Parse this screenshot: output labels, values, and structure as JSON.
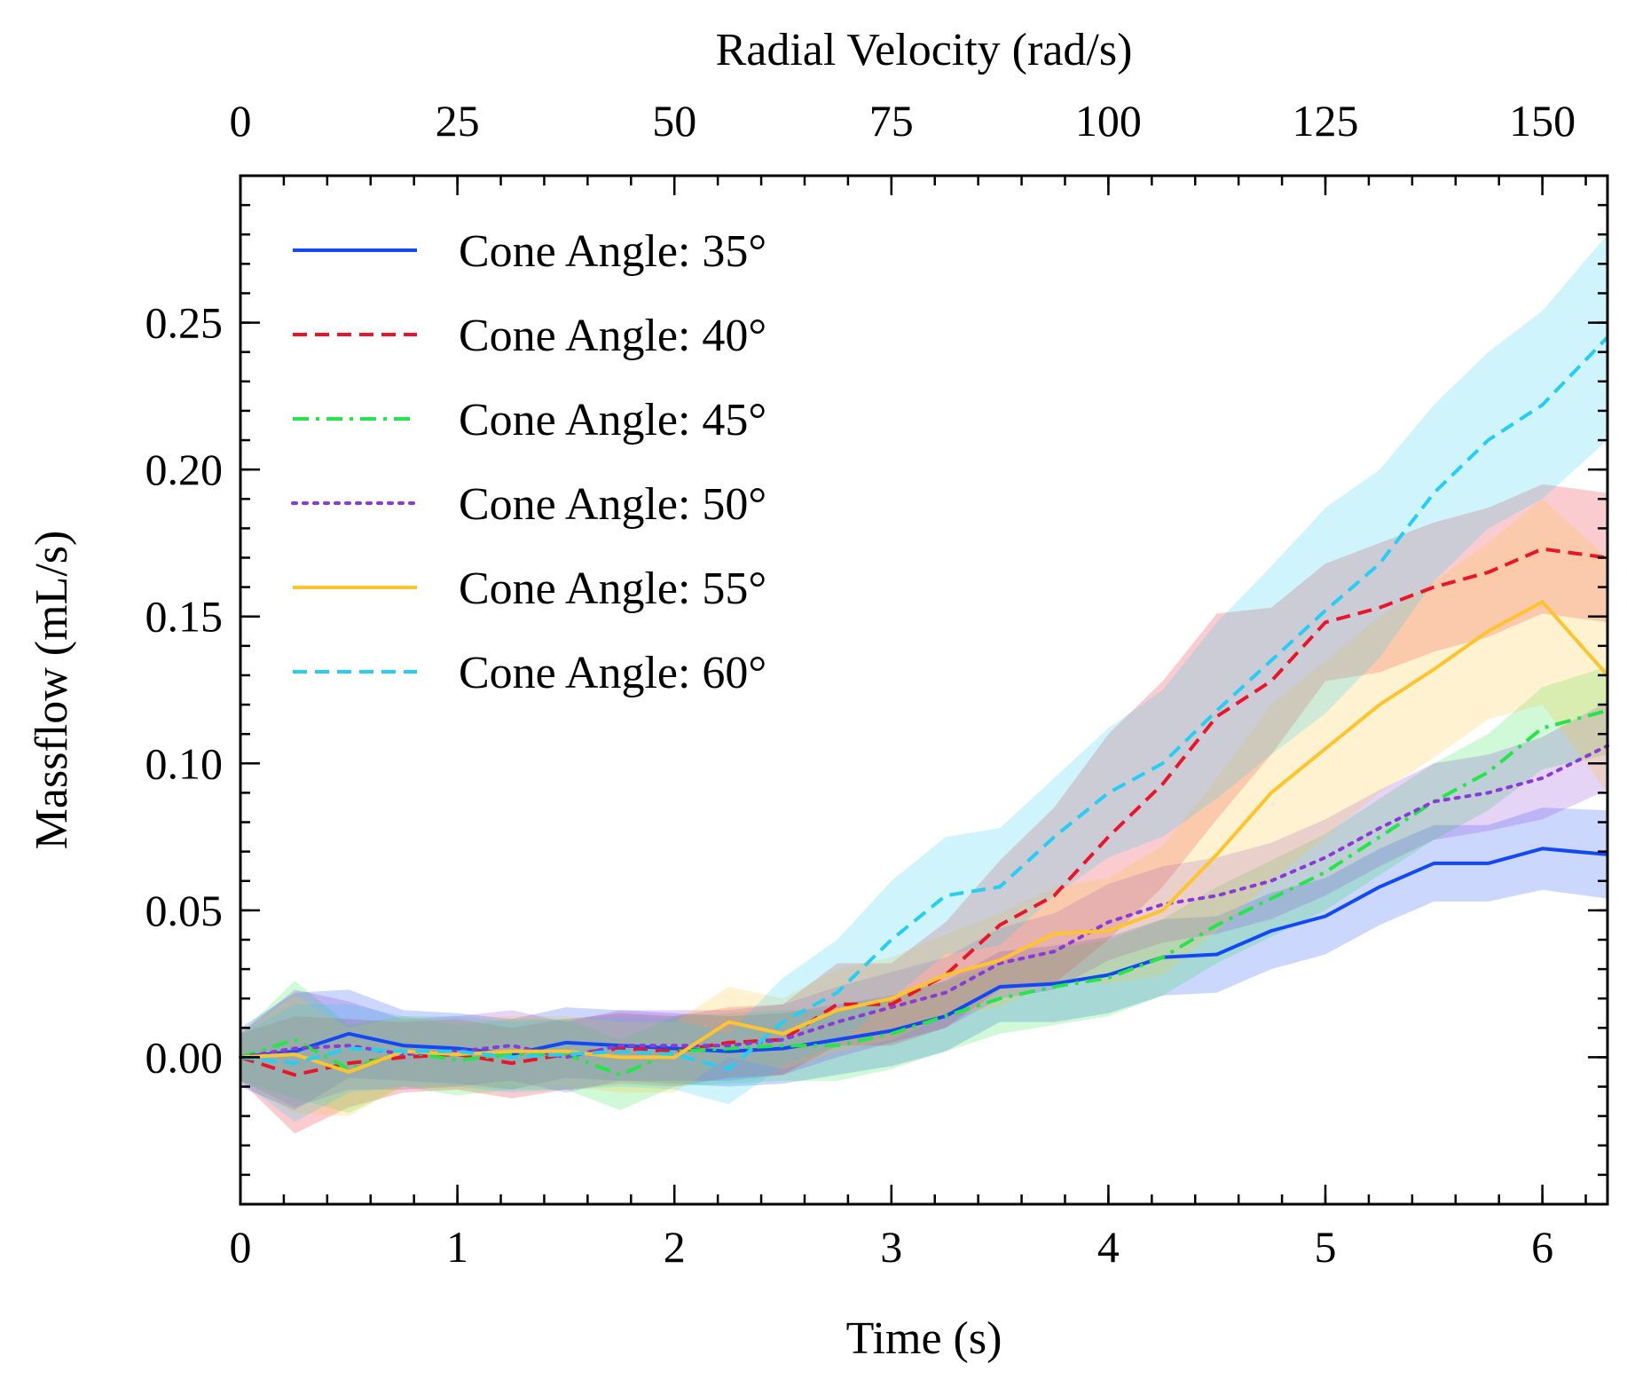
{
  "chart_data": {
    "type": "line",
    "xlabel": "Time (s)",
    "ylabel": "Massflow (mL/s)",
    "x2label": "Radial Velocity (rad/s)",
    "xlim": [
      0,
      6.3
    ],
    "ylim": [
      -0.05,
      0.3
    ],
    "x2lim": [
      0,
      157.5
    ],
    "xticks": [
      "0",
      "1",
      "2",
      "3",
      "4",
      "5",
      "6"
    ],
    "yticks": [
      "0.00",
      "0.05",
      "0.10",
      "0.15",
      "0.20",
      "0.25"
    ],
    "x2ticks": [
      "0",
      "25",
      "50",
      "75",
      "100",
      "125",
      "150"
    ],
    "grid": false,
    "legend_position": "top-left",
    "x": [
      0,
      0.25,
      0.5,
      0.75,
      1.0,
      1.25,
      1.5,
      1.75,
      2.0,
      2.25,
      2.5,
      2.75,
      3.0,
      3.25,
      3.5,
      3.75,
      4.0,
      4.25,
      4.5,
      4.75,
      5.0,
      5.25,
      5.5,
      5.75,
      6.0,
      6.3
    ],
    "series": [
      {
        "name": "Cone Angle: 35°",
        "color": "#1248f5",
        "style": "solid",
        "values": [
          0.0,
          0.002,
          0.008,
          0.004,
          0.003,
          0.001,
          0.005,
          0.004,
          0.003,
          0.002,
          0.003,
          0.006,
          0.009,
          0.014,
          0.024,
          0.025,
          0.028,
          0.034,
          0.035,
          0.043,
          0.048,
          0.058,
          0.066,
          0.066,
          0.071,
          0.069
        ],
        "band": [
          0.01,
          0.02,
          0.015,
          0.012,
          0.012,
          0.012,
          0.012,
          0.012,
          0.012,
          0.012,
          0.012,
          0.012,
          0.012,
          0.012,
          0.012,
          0.013,
          0.013,
          0.013,
          0.013,
          0.013,
          0.013,
          0.013,
          0.013,
          0.013,
          0.014,
          0.015
        ]
      },
      {
        "name": "Cone Angle: 40°",
        "color": "#e8152b",
        "style": "dashed",
        "values": [
          0.0,
          -0.006,
          -0.002,
          0.0,
          0.001,
          -0.002,
          0.001,
          0.003,
          0.002,
          0.005,
          0.006,
          0.018,
          0.018,
          0.028,
          0.045,
          0.055,
          0.075,
          0.093,
          0.116,
          0.128,
          0.148,
          0.153,
          0.16,
          0.165,
          0.173,
          0.17
        ],
        "band": [
          0.008,
          0.02,
          0.015,
          0.012,
          0.012,
          0.012,
          0.012,
          0.012,
          0.012,
          0.012,
          0.012,
          0.014,
          0.014,
          0.018,
          0.022,
          0.03,
          0.035,
          0.035,
          0.035,
          0.025,
          0.02,
          0.022,
          0.022,
          0.022,
          0.022,
          0.022
        ]
      },
      {
        "name": "Cone Angle: 45°",
        "color": "#26e54a",
        "style": "dashdot",
        "values": [
          0.0,
          0.006,
          -0.004,
          0.002,
          -0.001,
          0.001,
          0.001,
          -0.006,
          0.002,
          0.003,
          0.004,
          0.004,
          0.008,
          0.014,
          0.02,
          0.024,
          0.027,
          0.034,
          0.045,
          0.054,
          0.063,
          0.075,
          0.087,
          0.097,
          0.112,
          0.118
        ],
        "band": [
          0.008,
          0.02,
          0.015,
          0.012,
          0.012,
          0.012,
          0.012,
          0.012,
          0.012,
          0.012,
          0.012,
          0.012,
          0.012,
          0.012,
          0.012,
          0.013,
          0.013,
          0.013,
          0.013,
          0.013,
          0.013,
          0.013,
          0.013,
          0.013,
          0.014,
          0.015
        ]
      },
      {
        "name": "Cone Angle: 50°",
        "color": "#8a3ad8",
        "style": "dotted",
        "values": [
          0.0,
          0.003,
          0.004,
          0.001,
          0.002,
          0.004,
          0.0,
          0.004,
          0.004,
          0.004,
          0.006,
          0.012,
          0.017,
          0.022,
          0.032,
          0.036,
          0.046,
          0.052,
          0.055,
          0.06,
          0.068,
          0.078,
          0.087,
          0.09,
          0.095,
          0.106
        ],
        "band": [
          0.008,
          0.02,
          0.015,
          0.012,
          0.012,
          0.012,
          0.012,
          0.012,
          0.012,
          0.012,
          0.012,
          0.012,
          0.012,
          0.012,
          0.012,
          0.013,
          0.013,
          0.013,
          0.013,
          0.013,
          0.013,
          0.013,
          0.013,
          0.013,
          0.014,
          0.015
        ]
      },
      {
        "name": "Cone Angle: 55°",
        "color": "#ffc32e",
        "style": "solid",
        "values": [
          0.0,
          0.001,
          -0.005,
          0.002,
          0.001,
          0.002,
          0.002,
          0.0,
          0.0,
          0.012,
          0.008,
          0.016,
          0.02,
          0.028,
          0.033,
          0.042,
          0.043,
          0.05,
          0.069,
          0.09,
          0.105,
          0.12,
          0.132,
          0.145,
          0.155,
          0.13
        ],
        "band": [
          0.008,
          0.02,
          0.015,
          0.012,
          0.012,
          0.012,
          0.012,
          0.012,
          0.012,
          0.012,
          0.012,
          0.014,
          0.014,
          0.014,
          0.016,
          0.016,
          0.018,
          0.022,
          0.026,
          0.03,
          0.03,
          0.03,
          0.03,
          0.03,
          0.035,
          0.04
        ]
      },
      {
        "name": "Cone Angle: 60°",
        "color": "#27cdf2",
        "style": "dashed",
        "values": [
          0.0,
          -0.002,
          0.003,
          0.002,
          0.002,
          0.0,
          0.001,
          0.002,
          0.001,
          -0.004,
          0.012,
          0.022,
          0.04,
          0.055,
          0.058,
          0.075,
          0.09,
          0.1,
          0.118,
          0.135,
          0.152,
          0.168,
          0.192,
          0.21,
          0.222,
          0.245
        ],
        "band": [
          0.008,
          0.02,
          0.015,
          0.012,
          0.012,
          0.012,
          0.012,
          0.012,
          0.012,
          0.012,
          0.015,
          0.018,
          0.02,
          0.02,
          0.02,
          0.02,
          0.022,
          0.025,
          0.03,
          0.032,
          0.035,
          0.032,
          0.03,
          0.03,
          0.032,
          0.035
        ]
      }
    ]
  }
}
